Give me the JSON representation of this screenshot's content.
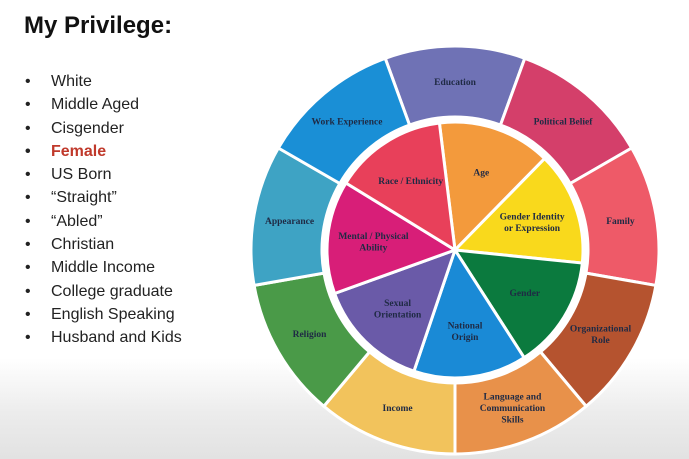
{
  "slide": {
    "title": "My Privilege:",
    "items": [
      {
        "text": "White"
      },
      {
        "text": "Middle Aged"
      },
      {
        "text": "Cisgender"
      },
      {
        "text": "Female",
        "highlight": true,
        "color": "#c0392b"
      },
      {
        "text": "US Born"
      },
      {
        "text": "“Straight”"
      },
      {
        "text": "“Abled”"
      },
      {
        "text": "Christian"
      },
      {
        "text": "Middle Income"
      },
      {
        "text": "College graduate"
      },
      {
        "text": "English Speaking"
      },
      {
        "text": "Husband and Kids"
      }
    ]
  },
  "wheel": {
    "outer": [
      {
        "label": [
          "Education"
        ],
        "color": "#6f72b5"
      },
      {
        "label": [
          "Political Belief"
        ],
        "color": "#d43f6a"
      },
      {
        "label": [
          "Family"
        ],
        "color": "#ee5a68"
      },
      {
        "label": [
          "Organizational",
          "Role"
        ],
        "color": "#b5532f"
      },
      {
        "label": [
          "Language and",
          "Communication",
          "Skills"
        ],
        "color": "#e8914a"
      },
      {
        "label": [
          "Income"
        ],
        "color": "#f2c35c"
      },
      {
        "label": [
          "Religion"
        ],
        "color": "#4a9a48"
      },
      {
        "label": [
          "Appearance"
        ],
        "color": "#3ea3c4"
      },
      {
        "label": [
          "Work Experience"
        ],
        "color": "#1a8fd6"
      }
    ],
    "inner": [
      {
        "label": [
          "Age"
        ],
        "color": "#f39a3c"
      },
      {
        "label": [
          "Gender Identity",
          "or Expression"
        ],
        "color": "#f9d91c"
      },
      {
        "label": [
          "Gender"
        ],
        "color": "#0b7a3e"
      },
      {
        "label": [
          "National",
          "Origin"
        ],
        "color": "#1a8ad6"
      },
      {
        "label": [
          "Sexual",
          "Orientation"
        ],
        "color": "#6a5aa8"
      },
      {
        "label": [
          "Mental / Physical",
          "Ability"
        ],
        "color": "#d81e78"
      },
      {
        "label": [
          "Race / Ethnicity"
        ],
        "color": "#e8405a"
      }
    ]
  }
}
